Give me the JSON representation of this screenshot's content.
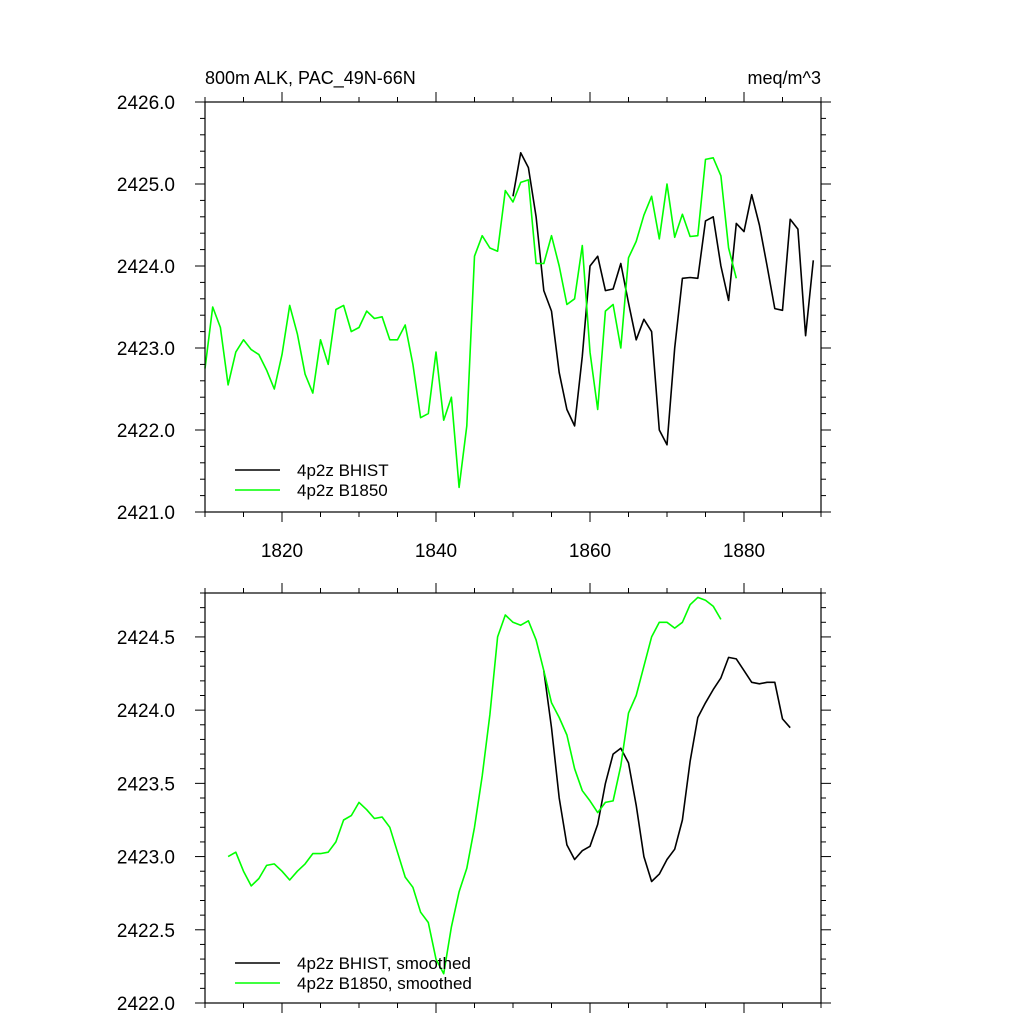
{
  "chart_data": [
    {
      "type": "line",
      "title_left": "800m ALK, PAC_49N-66N",
      "title_right": "meq/m^3",
      "xlabel": "",
      "ylabel": "",
      "xlim": [
        1810,
        1890
      ],
      "ylim": [
        2421.0,
        2426.0
      ],
      "xticks": [
        1820,
        1840,
        1860,
        1880
      ],
      "xtick_labels": [
        "1820",
        "1840",
        "1860",
        "1880"
      ],
      "yticks": [
        2421.0,
        2422.0,
        2423.0,
        2424.0,
        2425.0,
        2426.0
      ],
      "ytick_labels": [
        "2421.0",
        "2422.0",
        "2423.0",
        "2424.0",
        "2425.0",
        "2426.0"
      ],
      "grid": false,
      "legend_position": "bottom-left",
      "series": [
        {
          "name": "4p2z BHIST",
          "color": "#000000",
          "x": [
            1850,
            1851,
            1852,
            1853,
            1854,
            1855,
            1856,
            1857,
            1858,
            1859,
            1860,
            1861,
            1862,
            1863,
            1864,
            1865,
            1866,
            1867,
            1868,
            1869,
            1870,
            1871,
            1872,
            1873,
            1874,
            1875,
            1876,
            1877,
            1878,
            1879,
            1880,
            1881,
            1882,
            1883,
            1884,
            1885,
            1886,
            1887,
            1888,
            1889
          ],
          "y": [
            2424.85,
            2425.38,
            2425.2,
            2424.6,
            2423.7,
            2423.45,
            2422.7,
            2422.25,
            2422.05,
            2422.9,
            2424.0,
            2424.12,
            2423.7,
            2423.72,
            2424.03,
            2423.55,
            2423.1,
            2423.35,
            2423.2,
            2422.0,
            2421.82,
            2423.0,
            2423.85,
            2423.86,
            2423.85,
            2424.55,
            2424.6,
            2424.0,
            2423.58,
            2424.52,
            2424.42,
            2424.87,
            2424.5,
            2424.0,
            2423.48,
            2423.46,
            2424.57,
            2424.45,
            2423.15,
            2424.07
          ]
        },
        {
          "name": "4p2z B1850",
          "color": "#00ff00",
          "x": [
            1810,
            1811,
            1812,
            1813,
            1814,
            1815,
            1816,
            1817,
            1818,
            1819,
            1820,
            1821,
            1822,
            1823,
            1824,
            1825,
            1826,
            1827,
            1828,
            1829,
            1830,
            1831,
            1832,
            1833,
            1834,
            1835,
            1836,
            1837,
            1838,
            1839,
            1840,
            1841,
            1842,
            1843,
            1844,
            1845,
            1846,
            1847,
            1848,
            1849,
            1850,
            1851,
            1852,
            1853,
            1854,
            1855,
            1856,
            1857,
            1858,
            1859,
            1860,
            1861,
            1862,
            1863,
            1864,
            1865,
            1866,
            1867,
            1868,
            1869,
            1870,
            1871,
            1872,
            1873,
            1874,
            1875,
            1876,
            1877,
            1878,
            1879
          ],
          "y": [
            2422.75,
            2423.5,
            2423.25,
            2422.55,
            2422.95,
            2423.1,
            2422.98,
            2422.92,
            2422.73,
            2422.5,
            2422.92,
            2423.52,
            2423.17,
            2422.68,
            2422.45,
            2423.1,
            2422.8,
            2423.47,
            2423.52,
            2423.2,
            2423.25,
            2423.45,
            2423.36,
            2423.38,
            2423.1,
            2423.1,
            2423.28,
            2422.8,
            2422.15,
            2422.2,
            2422.95,
            2422.12,
            2422.4,
            2421.3,
            2422.05,
            2424.12,
            2424.37,
            2424.22,
            2424.18,
            2424.92,
            2424.78,
            2425.02,
            2425.05,
            2424.03,
            2424.03,
            2424.37,
            2424.0,
            2423.53,
            2423.6,
            2424.25,
            2422.95,
            2422.25,
            2423.45,
            2423.53,
            2423.0,
            2424.1,
            2424.3,
            2424.62,
            2424.85,
            2424.33,
            2425.0,
            2424.35,
            2424.63,
            2424.36,
            2424.37,
            2425.3,
            2425.32,
            2425.1,
            2424.22,
            2423.85
          ]
        }
      ]
    },
    {
      "type": "line",
      "xlabel": "",
      "ylabel": "",
      "xlim": [
        1810,
        1890
      ],
      "ylim": [
        2422.0,
        2424.8
      ],
      "xticks": [
        1820,
        1840,
        1860,
        1880
      ],
      "yticks": [
        2422.0,
        2422.5,
        2423.0,
        2423.5,
        2424.0,
        2424.5
      ],
      "ytick_labels": [
        "2422.0",
        "2422.5",
        "2423.0",
        "2423.5",
        "2424.0",
        "2424.5"
      ],
      "grid": false,
      "legend_position": "bottom-left",
      "series": [
        {
          "name": "4p2z BHIST, smoothed",
          "color": "#000000",
          "x": [
            1854,
            1855,
            1856,
            1857,
            1858,
            1859,
            1860,
            1861,
            1862,
            1863,
            1864,
            1865,
            1866,
            1867,
            1868,
            1869,
            1870,
            1871,
            1872,
            1873,
            1874,
            1875,
            1876,
            1877,
            1878,
            1879,
            1880,
            1881,
            1882,
            1883,
            1884,
            1885,
            1886
          ],
          "y": [
            2424.27,
            2423.88,
            2423.4,
            2423.08,
            2422.98,
            2423.04,
            2423.07,
            2423.22,
            2423.5,
            2423.7,
            2423.74,
            2423.64,
            2423.35,
            2423.0,
            2422.83,
            2422.88,
            2422.98,
            2423.05,
            2423.25,
            2423.65,
            2423.95,
            2424.05,
            2424.14,
            2424.22,
            2424.36,
            2424.35,
            2424.27,
            2424.19,
            2424.18,
            2424.19,
            2424.19,
            2423.94,
            2423.88
          ]
        },
        {
          "name": "4p2z B1850, smoothed",
          "color": "#00ff00",
          "x": [
            1813,
            1814,
            1815,
            1816,
            1817,
            1818,
            1819,
            1820,
            1821,
            1822,
            1823,
            1824,
            1825,
            1826,
            1827,
            1828,
            1829,
            1830,
            1831,
            1832,
            1833,
            1834,
            1835,
            1836,
            1837,
            1838,
            1839,
            1840,
            1841,
            1842,
            1843,
            1844,
            1845,
            1846,
            1847,
            1848,
            1849,
            1850,
            1851,
            1852,
            1853,
            1854,
            1855,
            1856,
            1857,
            1858,
            1859,
            1860,
            1861,
            1862,
            1863,
            1864,
            1865,
            1866,
            1867,
            1868,
            1869,
            1870,
            1871,
            1872,
            1873,
            1874,
            1875,
            1876,
            1877
          ],
          "y": [
            2423.0,
            2423.03,
            2422.9,
            2422.8,
            2422.85,
            2422.94,
            2422.95,
            2422.9,
            2422.84,
            2422.9,
            2422.95,
            2423.02,
            2423.02,
            2423.03,
            2423.1,
            2423.25,
            2423.28,
            2423.37,
            2423.32,
            2423.26,
            2423.27,
            2423.2,
            2423.03,
            2422.86,
            2422.79,
            2422.62,
            2422.55,
            2422.3,
            2422.2,
            2422.52,
            2422.76,
            2422.92,
            2423.2,
            2423.55,
            2423.97,
            2424.5,
            2424.65,
            2424.6,
            2424.58,
            2424.61,
            2424.48,
            2424.27,
            2424.05,
            2423.95,
            2423.83,
            2423.6,
            2423.45,
            2423.38,
            2423.3,
            2423.37,
            2423.38,
            2423.62,
            2423.98,
            2424.1,
            2424.3,
            2424.5,
            2424.6,
            2424.6,
            2424.56,
            2424.6,
            2424.72,
            2424.77,
            2424.75,
            2424.71,
            2424.62
          ]
        }
      ]
    }
  ]
}
